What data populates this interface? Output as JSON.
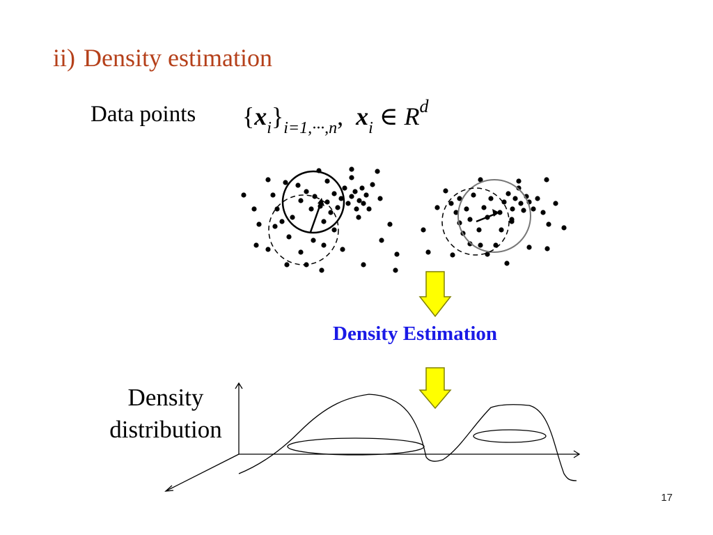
{
  "slide": {
    "title_number": "ii)",
    "title_text": "Density estimation",
    "data_points_label": "Data points",
    "formula": {
      "set_open": "{",
      "x_symbol": "x",
      "i_sub": "i",
      "set_close": "}",
      "index_range": "i=1,···,n",
      "comma": ",",
      "x_symbol_2": "x",
      "i_sub_2": "i",
      "element_of": "∈",
      "space": "R",
      "dimension": "d"
    },
    "arrow_caption": "Density Estimation",
    "density_label_line1": "Density",
    "density_label_line2": "distribution",
    "page_number": "17"
  },
  "colors": {
    "title": "#b5401a",
    "caption": "#1a1ae6",
    "arrow_fill": "#ffff00",
    "arrow_stroke": "#808000"
  }
}
